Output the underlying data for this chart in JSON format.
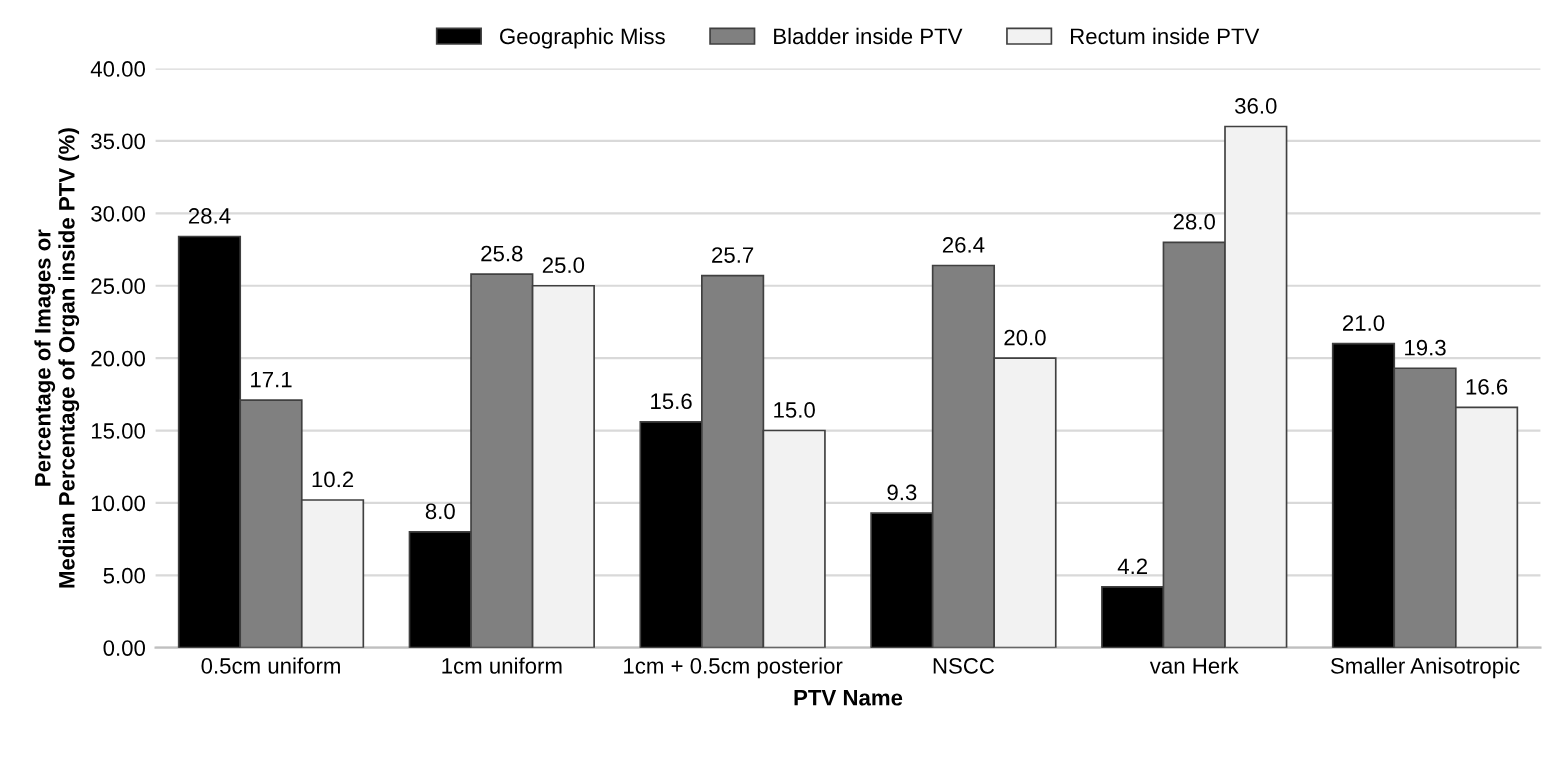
{
  "chart_data": {
    "type": "bar",
    "xlabel": "PTV Name",
    "ylabel": "Percentage of Images or\nMedian Percentage of Organ inside PTV (%)",
    "categories": [
      "0.5cm uniform",
      "1cm uniform",
      "1cm + 0.5cm posterior",
      "NSCC",
      "van Herk",
      "Smaller Anisotropic"
    ],
    "series": [
      {
        "name": "Geographic Miss",
        "color": "#000000",
        "values": [
          28.4,
          8.0,
          15.6,
          9.3,
          4.2,
          21.0
        ],
        "value_labels": [
          "28.4",
          "8.0",
          "15.6",
          "9.3",
          "4.2",
          "21.0"
        ]
      },
      {
        "name": "Bladder inside PTV",
        "color": "#808080",
        "values": [
          17.1,
          25.8,
          25.7,
          26.4,
          28.0,
          19.3
        ],
        "value_labels": [
          "17.1",
          "25.8",
          "25.7",
          "26.4",
          "28.0",
          "19.3"
        ]
      },
      {
        "name": "Rectum inside PTV",
        "color": "#f2f2f2",
        "values": [
          10.2,
          25.0,
          15.0,
          20.0,
          36.0,
          16.6
        ],
        "value_labels": [
          "10.2",
          "25.0",
          "15.0",
          "20.0",
          "36.0",
          "16.6"
        ]
      }
    ],
    "ylim": [
      0,
      40
    ],
    "yticks": [
      {
        "value": 0,
        "label": "0.00"
      },
      {
        "value": 5,
        "label": "5.00"
      },
      {
        "value": 10,
        "label": "10.00"
      },
      {
        "value": 15,
        "label": "15.00"
      },
      {
        "value": 20,
        "label": "20.00"
      },
      {
        "value": 25,
        "label": "25.00"
      },
      {
        "value": 30,
        "label": "30.00"
      },
      {
        "value": 35,
        "label": "35.00"
      },
      {
        "value": 40,
        "label": "40.00"
      }
    ],
    "grid": "y",
    "legend": "top"
  }
}
